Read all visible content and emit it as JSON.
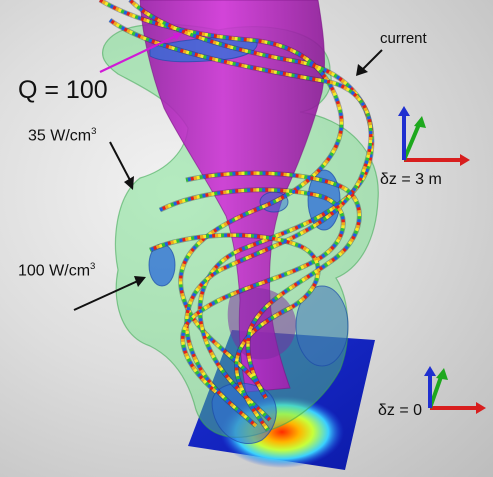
{
  "labels": {
    "q_value": "Q = 100",
    "current": "current",
    "heating_35": "35 W/cm",
    "heating_35_exp": "3",
    "heating_100": "100 W/cm",
    "heating_100_exp": "3",
    "dz_upper": "δz = 3 m",
    "dz_lower": "δz = 0"
  },
  "colors": {
    "plasma_column": "#c21ec8",
    "outer_isosurface": "#5fe07a",
    "inner_isosurface": "#2f6fd8",
    "magenta_arrow": "#d01ad6",
    "axis_x": "#d81e1e",
    "axis_y": "#1ea81e",
    "axis_z": "#1f2fd0"
  }
}
